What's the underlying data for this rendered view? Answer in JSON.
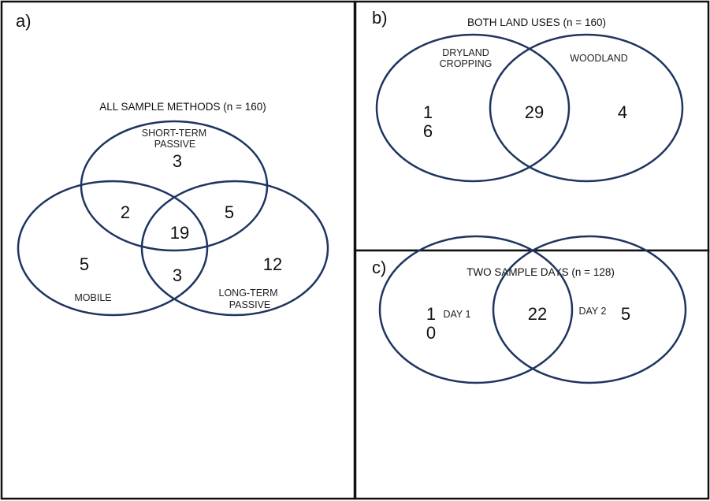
{
  "panels": {
    "a": {
      "label": "a)",
      "title": "ALL SAMPLE METHODS (n = 160)",
      "sets": {
        "short_term": [
          "SHORT-TERM",
          "PASSIVE"
        ],
        "mobile": "MOBILE",
        "long_term": [
          "LONG-TERM",
          "PASSIVE"
        ]
      },
      "counts": {
        "short_term_only": "3",
        "mobile_short": "2",
        "short_long": "5",
        "all_three": "19",
        "mobile_only": "5",
        "mobile_long": "3",
        "long_only": "12"
      }
    },
    "b": {
      "label": "b)",
      "title": "BOTH LAND USES (n = 160)",
      "sets": {
        "left": [
          "DRYLAND",
          "CROPPING"
        ],
        "right": "WOODLAND"
      },
      "counts": {
        "left_only": [
          "1",
          "6"
        ],
        "both": "29",
        "right_only": "4"
      }
    },
    "c": {
      "label": "c)",
      "title": "TWO SAMPLE DAYS (n = 128)",
      "sets": {
        "left": "DAY 1",
        "right": "DAY 2"
      },
      "counts": {
        "left_only": [
          "1",
          "0"
        ],
        "both": "22",
        "right_only": "5"
      }
    }
  },
  "colors": {
    "circle_stroke": "#1f3560"
  }
}
